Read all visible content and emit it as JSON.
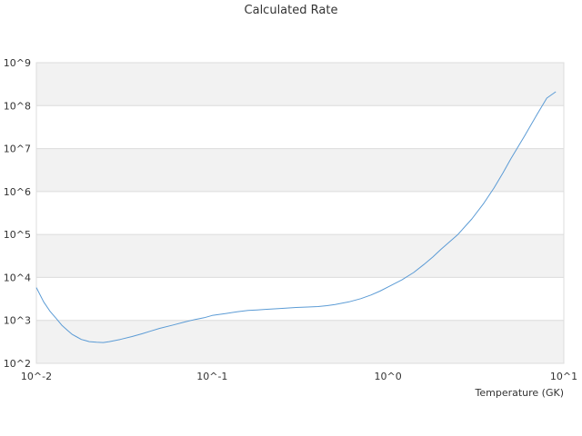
{
  "chart_data": {
    "type": "line",
    "title": "Calculated Rate",
    "xlabel": "Temperature (GK)",
    "ylabel": "",
    "xscale": "log",
    "yscale": "log",
    "xlim": [
      0.01,
      10
    ],
    "ylim": [
      100,
      1000000000
    ],
    "grid": "alternating horizontal bands",
    "x_tick_labels": [
      "10^-2",
      "10^-1",
      "10^0",
      "10^1"
    ],
    "y_tick_labels": [
      "10^2",
      "10^3",
      "10^4",
      "10^5",
      "10^6",
      "10^7",
      "10^8",
      "10^9"
    ],
    "series": [
      {
        "color": "#5b9bd5",
        "x": [
          0.01,
          0.011,
          0.012,
          0.013,
          0.014,
          0.015,
          0.016,
          0.017,
          0.018,
          0.019,
          0.02,
          0.022,
          0.024,
          0.026,
          0.028,
          0.03,
          0.035,
          0.04,
          0.045,
          0.05,
          0.06,
          0.07,
          0.08,
          0.09,
          0.1,
          0.12,
          0.14,
          0.16,
          0.18,
          0.2,
          0.25,
          0.3,
          0.35,
          0.4,
          0.45,
          0.5,
          0.6,
          0.7,
          0.8,
          0.9,
          1.0,
          1.2,
          1.4,
          1.6,
          1.8,
          2.0,
          2.5,
          3.0,
          3.5,
          4.0,
          4.5,
          5.0,
          6.0,
          7.0,
          8.0,
          9.0
        ],
        "y": [
          5800,
          2700,
          1600,
          1100,
          760,
          590,
          470,
          410,
          360,
          340,
          320,
          310,
          305,
          320,
          340,
          360,
          420,
          490,
          570,
          650,
          780,
          920,
          1050,
          1150,
          1300,
          1450,
          1600,
          1700,
          1750,
          1800,
          1900,
          2000,
          2050,
          2100,
          2200,
          2350,
          2700,
          3200,
          3900,
          4800,
          6000,
          8800,
          13000,
          20000,
          30000,
          45000,
          100000,
          230000,
          530000,
          1200000,
          2700000,
          5800000,
          20000000,
          60000000,
          150000000,
          210000000
        ]
      }
    ]
  }
}
